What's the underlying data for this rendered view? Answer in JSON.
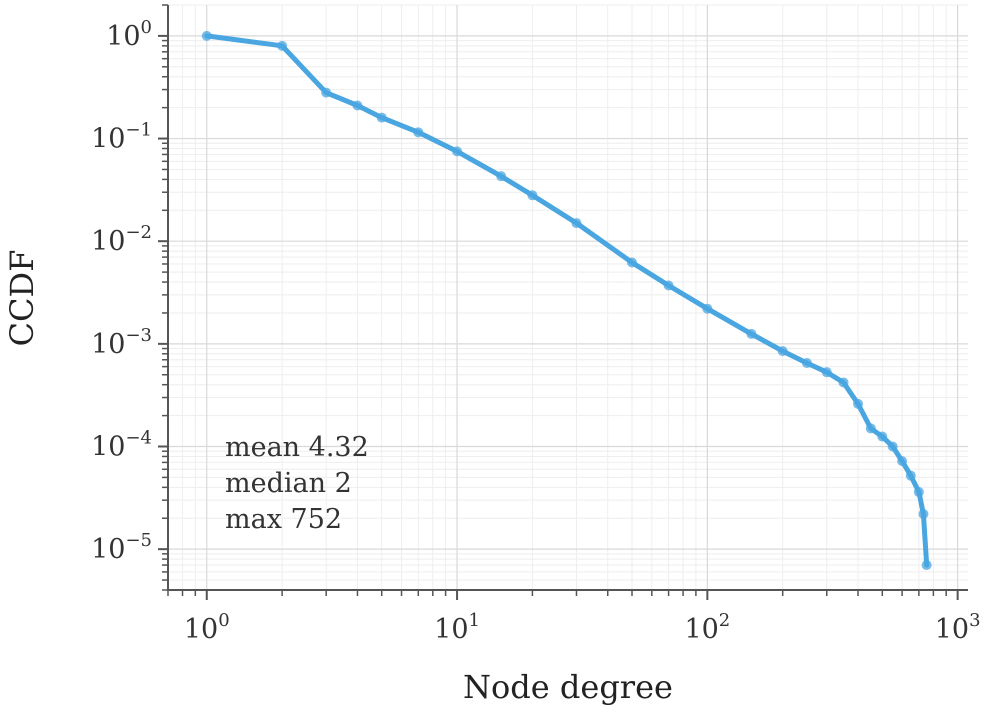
{
  "chart_data": {
    "type": "line",
    "xlabel": "Node degree",
    "ylabel": "CCDF",
    "x_scale": "log",
    "y_scale": "log",
    "xlim": [
      0.7,
      1100
    ],
    "ylim": [
      4e-06,
      2
    ],
    "x_ticks": [
      {
        "base": "10",
        "exp": "0",
        "value": 1
      },
      {
        "base": "10",
        "exp": "1",
        "value": 10
      },
      {
        "base": "10",
        "exp": "2",
        "value": 100
      },
      {
        "base": "10",
        "exp": "3",
        "value": 1000
      }
    ],
    "y_ticks": [
      {
        "base": "10",
        "exp": "0",
        "value": 1
      },
      {
        "base": "10",
        "exp": "−1",
        "value": 0.1
      },
      {
        "base": "10",
        "exp": "−2",
        "value": 0.01
      },
      {
        "base": "10",
        "exp": "−3",
        "value": 0.001
      },
      {
        "base": "10",
        "exp": "−4",
        "value": 0.0001
      },
      {
        "base": "10",
        "exp": "−5",
        "value": 1e-05
      }
    ],
    "grid": true,
    "series": [
      {
        "color": "#4aa6e0",
        "marker": "circle",
        "x": [
          1,
          2,
          3,
          4,
          5,
          7,
          10,
          15,
          20,
          30,
          50,
          70,
          100,
          150,
          200,
          250,
          300,
          350,
          400,
          450,
          500,
          550,
          600,
          650,
          700,
          730,
          752
        ],
        "y": [
          1.0,
          0.8,
          0.28,
          0.21,
          0.16,
          0.115,
          0.075,
          0.043,
          0.028,
          0.015,
          0.0062,
          0.0037,
          0.0022,
          0.00125,
          0.00085,
          0.00065,
          0.00053,
          0.00042,
          0.00026,
          0.00015,
          0.000125,
          0.0001,
          7.2e-05,
          5.2e-05,
          3.6e-05,
          2.2e-05,
          7e-06
        ]
      }
    ],
    "annotations": [
      "mean 4.32",
      "median 2",
      "max 752"
    ]
  }
}
